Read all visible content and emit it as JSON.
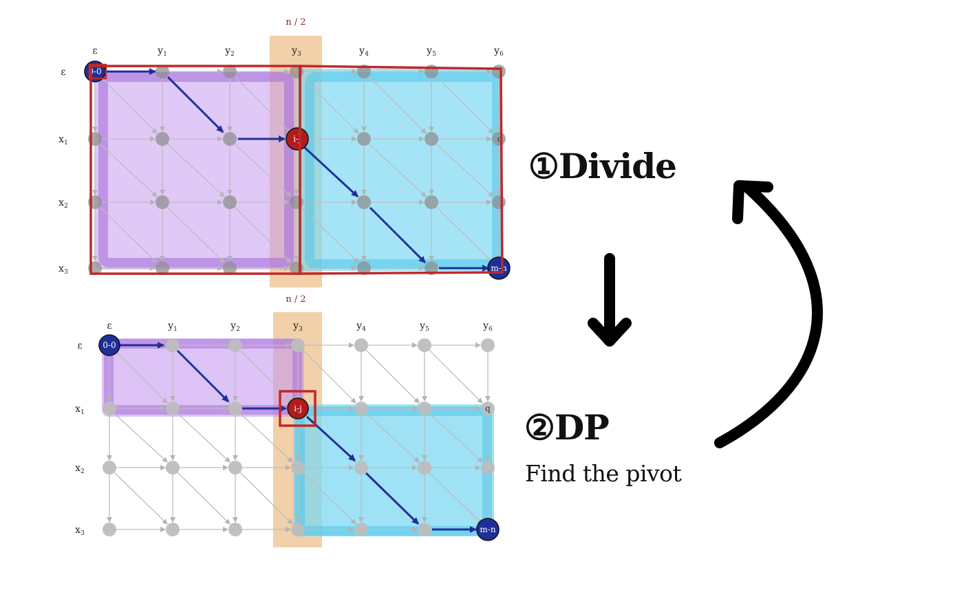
{
  "steps": {
    "divide": "①Divide",
    "dp": "②DP",
    "dp_subtitle": "Find the pivot"
  },
  "grid": {
    "column_headers": [
      "ε",
      "y1",
      "y2",
      "y3",
      "y4",
      "y5",
      "y6"
    ],
    "row_headers": [
      "ε",
      "x1",
      "x2",
      "x3"
    ],
    "midpoint_label": "n / 2",
    "start_node": "0-0",
    "pivot_node": "i-j",
    "end_node": "m-n",
    "target_node_top": "c",
    "target_node_bottom": "q"
  },
  "colors": {
    "left_region": "#c79bf0",
    "right_region": "#7fd8f2",
    "midpoint_band": "#f0c89a",
    "path": "#1f2f9a",
    "pivot": "#b01c1c",
    "grid_node": "#a9a9a9",
    "box_outline": "#c0282a"
  },
  "arrows": {
    "down": "down-arrow",
    "cycle": "curved-arrow"
  }
}
